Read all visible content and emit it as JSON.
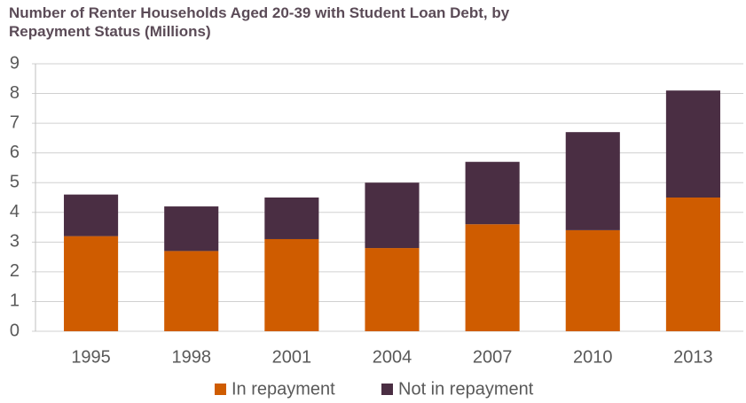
{
  "chart_data": {
    "type": "stacked_bar",
    "title": "Number of Renter Households Aged 20-39 with Student Loan Debt, by Repayment Status (Millions)",
    "categories": [
      "1995",
      "1998",
      "2001",
      "2004",
      "2007",
      "2010",
      "2013"
    ],
    "series": [
      {
        "name": "In repayment",
        "color": "#cf5c00",
        "values": [
          3.2,
          2.7,
          3.1,
          2.8,
          3.6,
          3.4,
          4.5
        ]
      },
      {
        "name": "Not in repayment",
        "color": "#4a2e43",
        "values": [
          1.4,
          1.5,
          1.4,
          2.2,
          2.1,
          3.3,
          3.6
        ]
      }
    ],
    "ylim": [
      0,
      9
    ],
    "yticks": [
      0,
      1,
      2,
      3,
      4,
      5,
      6,
      7,
      8,
      9
    ],
    "grid": true,
    "legend": "bottom"
  }
}
